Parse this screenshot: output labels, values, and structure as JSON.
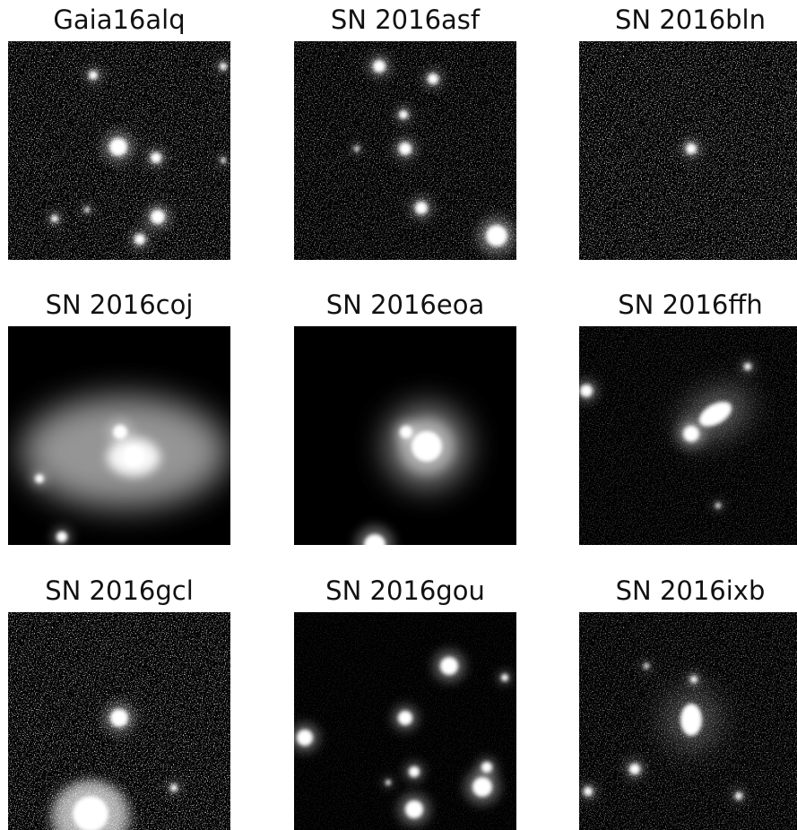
{
  "panels": [
    {
      "title": "Gaia16alq"
    },
    {
      "title": "SN 2016asf"
    },
    {
      "title": "SN 2016bln"
    },
    {
      "title": "SN 2016coj"
    },
    {
      "title": "SN 2016eoa"
    },
    {
      "title": "SN 2016ffh"
    },
    {
      "title": "SN 2016gcl"
    },
    {
      "title": "SN 2016gou"
    },
    {
      "title": "SN 2016ixb"
    }
  ]
}
